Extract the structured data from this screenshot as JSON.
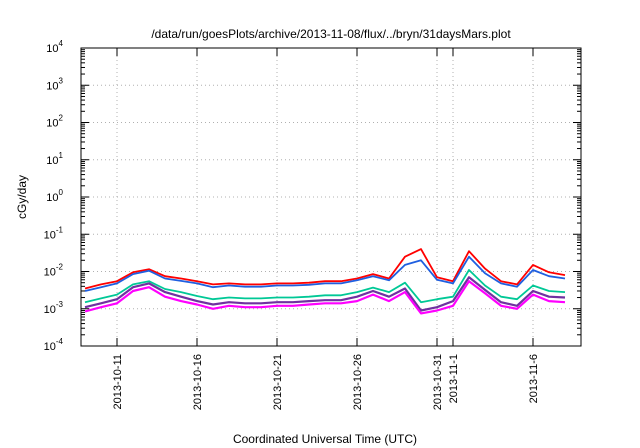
{
  "chart_data": {
    "type": "line",
    "title": "/data/run/goesPlots/archive/2013-11-08/flux/../bryn/31daysMars.plot",
    "xlabel": "Coordinated Universal Time (UTC)",
    "ylabel": "cGy/day",
    "y_scale": "log",
    "ylim": [
      0.0001,
      10000
    ],
    "xlim": [
      "2013-10-08T18:00",
      "2013-11-09T00:00"
    ],
    "grid": true,
    "legend": "none",
    "y_ticks": [
      {
        "base": "10",
        "exp": "4",
        "value": 10000
      },
      {
        "base": "10",
        "exp": "3",
        "value": 1000
      },
      {
        "base": "10",
        "exp": "2",
        "value": 100
      },
      {
        "base": "10",
        "exp": "1",
        "value": 10
      },
      {
        "base": "10",
        "exp": "0",
        "value": 1
      },
      {
        "base": "10",
        "exp": "-1",
        "value": 0.1
      },
      {
        "base": "10",
        "exp": "-2",
        "value": 0.01
      },
      {
        "base": "10",
        "exp": "-3",
        "value": 0.001
      },
      {
        "base": "10",
        "exp": "-4",
        "value": 0.0001
      }
    ],
    "x_ticks": [
      {
        "label": "2013-10-11",
        "date": "2013-10-11"
      },
      {
        "label": "2013-10-16",
        "date": "2013-10-16"
      },
      {
        "label": "2013-10-21",
        "date": "2013-10-21"
      },
      {
        "label": "2013-10-26",
        "date": "2013-10-26"
      },
      {
        "label": "2013-10-31",
        "date": "2013-10-31"
      },
      {
        "label": "2013-11-1",
        "date": "2013-11-01"
      },
      {
        "label": "2013-11-6",
        "date": "2013-11-06"
      }
    ],
    "x": [
      "2013-10-09",
      "2013-10-10",
      "2013-10-11",
      "2013-10-12",
      "2013-10-13",
      "2013-10-14",
      "2013-10-15",
      "2013-10-16",
      "2013-10-17",
      "2013-10-18",
      "2013-10-19",
      "2013-10-20",
      "2013-10-21",
      "2013-10-22",
      "2013-10-23",
      "2013-10-24",
      "2013-10-25",
      "2013-10-26",
      "2013-10-27",
      "2013-10-28",
      "2013-10-29",
      "2013-10-30",
      "2013-10-31",
      "2013-11-01",
      "2013-11-02",
      "2013-11-03",
      "2013-11-04",
      "2013-11-05",
      "2013-11-06",
      "2013-11-07",
      "2013-11-08"
    ],
    "series": [
      {
        "color": "#ff0000",
        "values": [
          0.0035,
          0.0045,
          0.0055,
          0.0095,
          0.0115,
          0.0075,
          0.0065,
          0.0055,
          0.0045,
          0.0048,
          0.0045,
          0.0045,
          0.0048,
          0.0048,
          0.005,
          0.0055,
          0.0055,
          0.0065,
          0.0085,
          0.0065,
          0.025,
          0.04,
          0.007,
          0.0055,
          0.035,
          0.012,
          0.0055,
          0.0045,
          0.015,
          0.0095,
          0.008
        ]
      },
      {
        "color": "#1f5fe0",
        "values": [
          0.003,
          0.0038,
          0.0048,
          0.0085,
          0.0105,
          0.0065,
          0.0056,
          0.0048,
          0.0038,
          0.0042,
          0.0039,
          0.0039,
          0.0042,
          0.0042,
          0.0044,
          0.0048,
          0.0048,
          0.0058,
          0.0075,
          0.0058,
          0.015,
          0.02,
          0.006,
          0.0048,
          0.025,
          0.009,
          0.0048,
          0.0039,
          0.011,
          0.0075,
          0.0065
        ]
      },
      {
        "color": "#00c896",
        "values": [
          0.0015,
          0.0019,
          0.0024,
          0.0045,
          0.0055,
          0.0034,
          0.0028,
          0.0022,
          0.0018,
          0.002,
          0.0019,
          0.0019,
          0.002,
          0.002,
          0.0021,
          0.0023,
          0.0023,
          0.0028,
          0.0037,
          0.0028,
          0.005,
          0.0015,
          0.0018,
          0.0021,
          0.011,
          0.0042,
          0.0021,
          0.0018,
          0.0042,
          0.003,
          0.0028
        ]
      },
      {
        "color": "#7030a0",
        "values": [
          0.0011,
          0.0014,
          0.0018,
          0.0038,
          0.0048,
          0.0028,
          0.0021,
          0.0016,
          0.0013,
          0.0015,
          0.0014,
          0.0014,
          0.0015,
          0.0015,
          0.0016,
          0.0017,
          0.0017,
          0.0021,
          0.003,
          0.0021,
          0.0035,
          0.0009,
          0.0011,
          0.0016,
          0.007,
          0.0032,
          0.0015,
          0.0012,
          0.003,
          0.0021,
          0.002
        ]
      },
      {
        "color": "#ff00ff",
        "values": [
          0.00085,
          0.0011,
          0.0014,
          0.003,
          0.0038,
          0.0021,
          0.0016,
          0.0013,
          0.001,
          0.0012,
          0.0011,
          0.0011,
          0.0012,
          0.0012,
          0.0013,
          0.0014,
          0.0014,
          0.0016,
          0.0024,
          0.0016,
          0.0028,
          0.00075,
          0.0009,
          0.0012,
          0.0055,
          0.0026,
          0.0012,
          0.001,
          0.0024,
          0.0016,
          0.0015
        ]
      }
    ]
  }
}
